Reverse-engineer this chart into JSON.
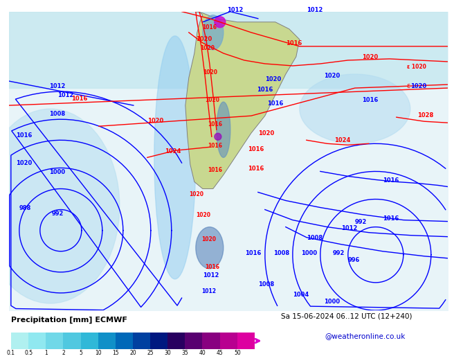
{
  "title_left": "Precipitation [mm] ECMWF",
  "title_right": "Sa 15-06-2024 06..12 UTC (12+240)",
  "credit": "@weatheronline.co.uk",
  "colorbar_levels": [
    0.1,
    0.5,
    1,
    2,
    5,
    10,
    15,
    20,
    25,
    30,
    35,
    40,
    45,
    50
  ],
  "colorbar_colors": [
    "#b0f0f0",
    "#90e0e8",
    "#70d0e0",
    "#50c0d8",
    "#30b0d0",
    "#2090c8",
    "#1070b8",
    "#0050a0",
    "#003080",
    "#300060",
    "#600080",
    "#9000a0",
    "#c000b0",
    "#e000c0",
    "#ff00d0"
  ],
  "map_bg": "#e8f4f8",
  "land_color": "#c8d890",
  "border_color": "#808080",
  "fig_bg": "#ffffff",
  "bottom_bar_color": "#d0e8f0"
}
